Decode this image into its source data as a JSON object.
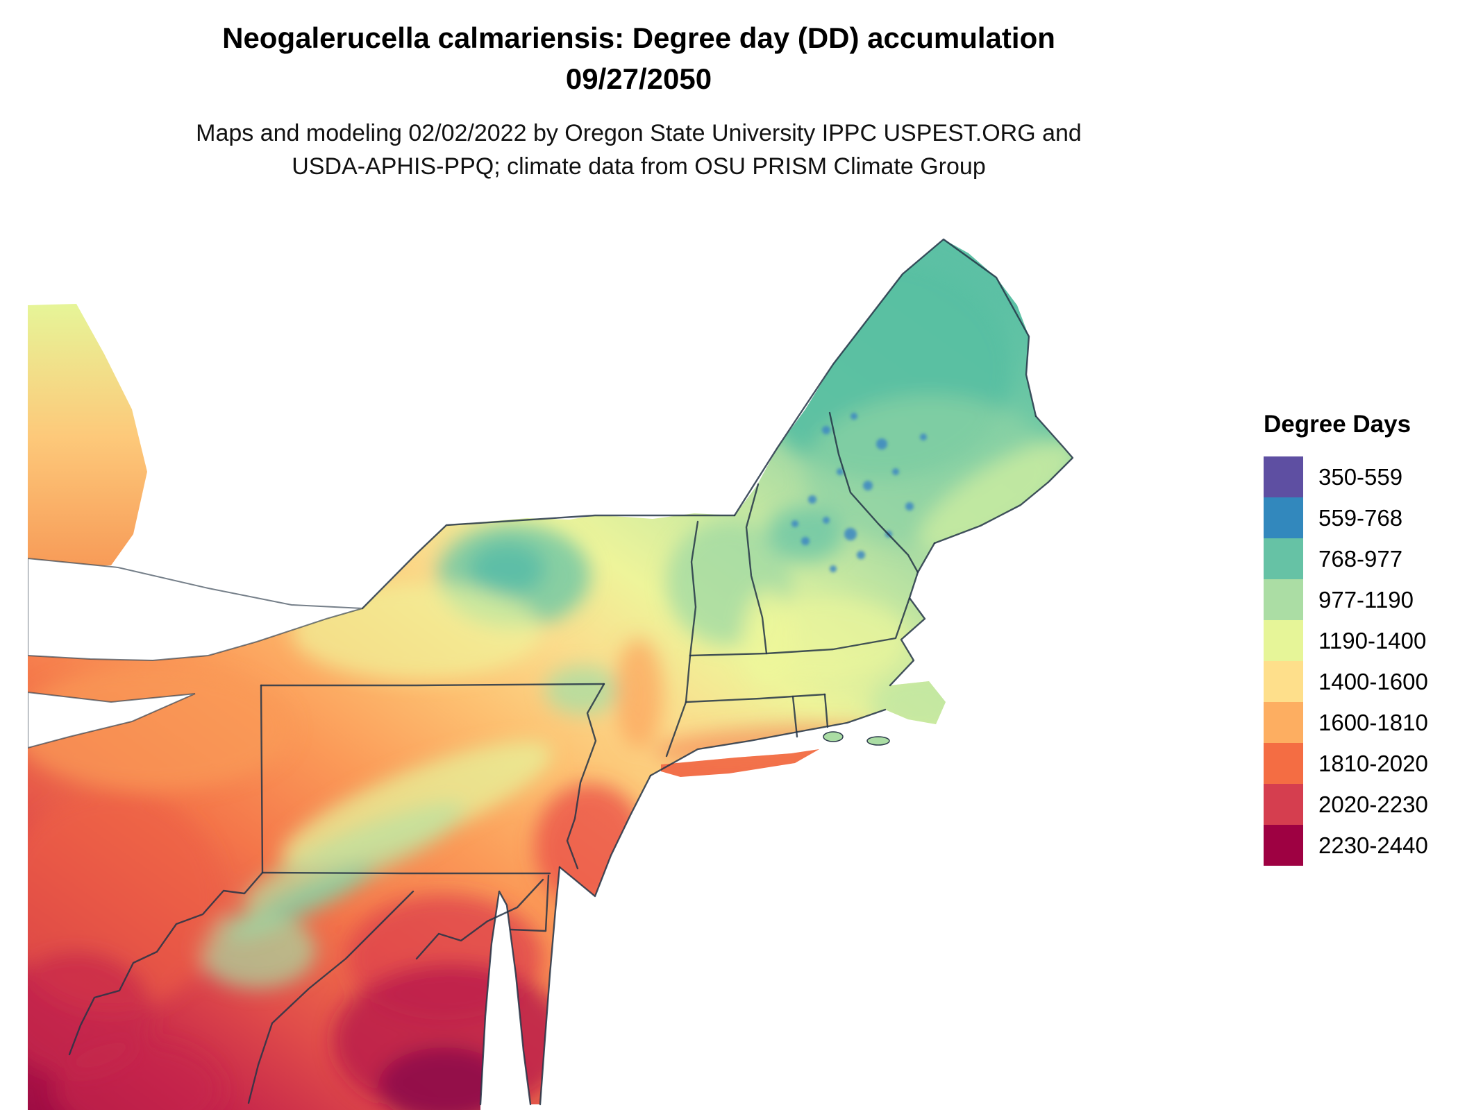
{
  "header": {
    "title_line1": "Neogalerucella calmariensis: Degree day (DD) accumulation",
    "title_line2": "09/27/2050",
    "subtitle_line1": "Maps and modeling 02/02/2022 by Oregon State University IPPC USPEST.ORG and",
    "subtitle_line2": "USDA-APHIS-PPQ; climate data from OSU PRISM Climate Group"
  },
  "legend": {
    "title": "Degree Days",
    "entries": [
      {
        "label": "350-559",
        "color": "#5e4fa2"
      },
      {
        "label": "559-768",
        "color": "#3288bd"
      },
      {
        "label": "768-977",
        "color": "#66c2a5"
      },
      {
        "label": "977-1190",
        "color": "#abdda4"
      },
      {
        "label": "1190-1400",
        "color": "#e6f598"
      },
      {
        "label": "1400-1600",
        "color": "#fedf8b"
      },
      {
        "label": "1600-1810",
        "color": "#fdae61"
      },
      {
        "label": "1810-2020",
        "color": "#f46d43"
      },
      {
        "label": "2020-2230",
        "color": "#d53e4f"
      },
      {
        "label": "2230-2440",
        "color": "#9e0142"
      }
    ]
  }
}
